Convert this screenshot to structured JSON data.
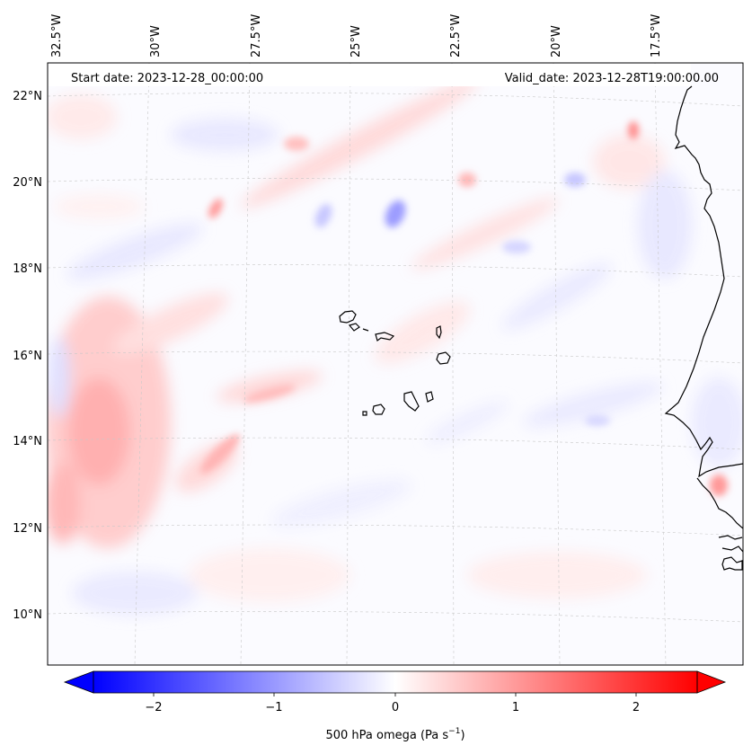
{
  "header": {
    "start_date": "Start date: 2023-12-28_00:00:00",
    "valid_date": "Valid_date: 2023-12-28T19:00:00.00"
  },
  "map": {
    "projection": "lambert-conformal",
    "field": "500 hPa omega",
    "longitude_labels": [
      "32.5°W",
      "30°W",
      "27.5°W",
      "25°W",
      "22.5°W",
      "20°W",
      "17.5°W"
    ],
    "latitude_labels": [
      "22°N",
      "20°N",
      "18°N",
      "16°N",
      "14°N",
      "12°N",
      "10°N"
    ],
    "gridlines": true,
    "coastlines": true
  },
  "colorbar": {
    "label_main": "500 hPa omega (Pa s",
    "label_sup": "−1",
    "label_end": ")",
    "tick_labels": [
      "−2",
      "−1",
      "0",
      "1",
      "2"
    ],
    "colormap": "bwr",
    "range": [
      -2.5,
      2.5
    ],
    "extend": "both",
    "colors": {
      "negative": "#0000ff",
      "zero": "#ffffff",
      "positive": "#ff0000"
    }
  }
}
